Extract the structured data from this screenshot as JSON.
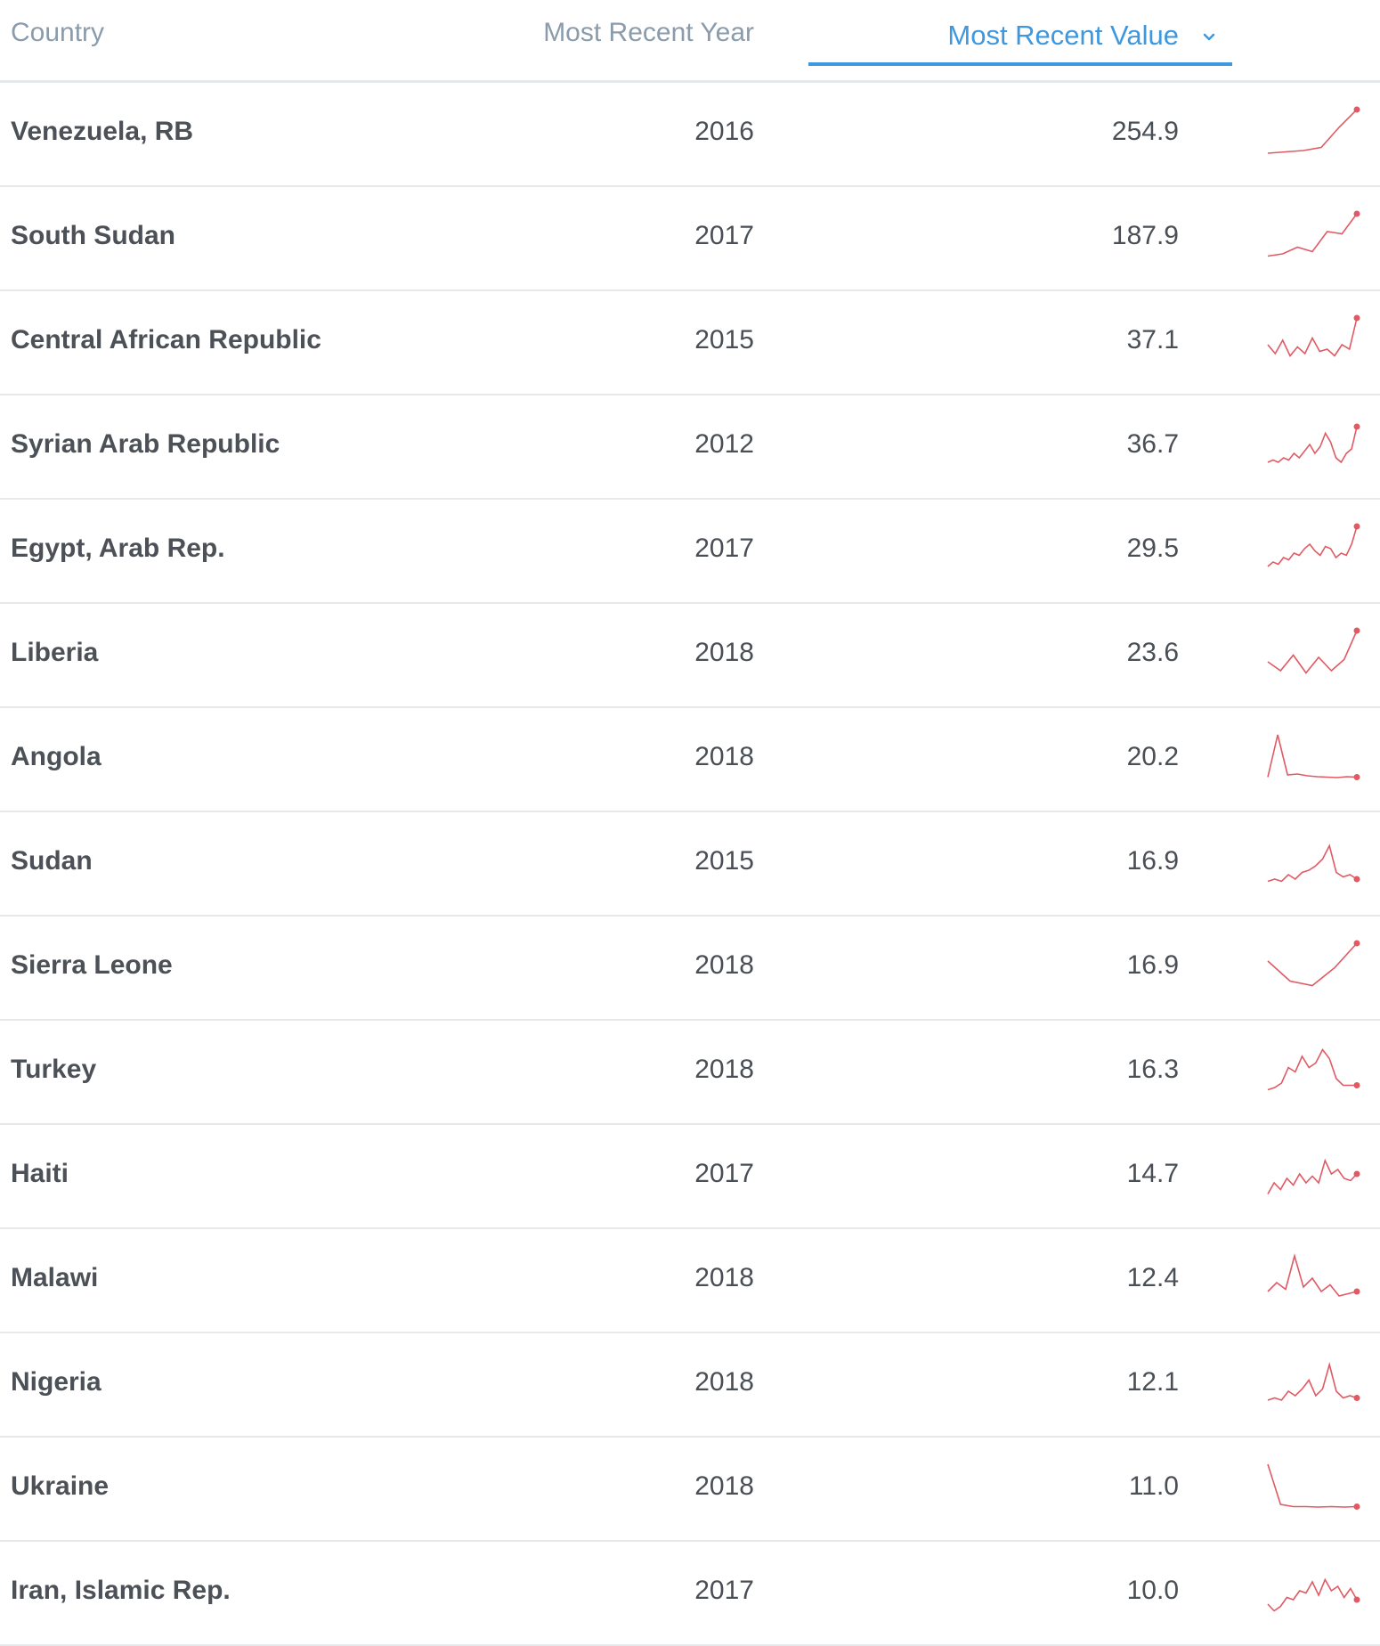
{
  "header": {
    "country": "Country",
    "year": "Most Recent Year",
    "value": "Most Recent Value",
    "sort_icon": "chevron-down-icon"
  },
  "colors": {
    "accent": "#3d98df",
    "spark": "#e05a64",
    "muted": "#8a9bab",
    "text": "#4a4f55"
  },
  "rows": [
    {
      "country": "Venezuela, RB",
      "year": "2016",
      "value": "254.9",
      "trend": [
        0.02,
        0.05,
        0.08,
        0.15,
        0.6,
        1.0
      ]
    },
    {
      "country": "South Sudan",
      "year": "2017",
      "value": "187.9",
      "trend": [
        0.05,
        0.1,
        0.25,
        0.15,
        0.6,
        0.55,
        1.0
      ]
    },
    {
      "country": "Central African Republic",
      "year": "2015",
      "value": "37.1",
      "trend": [
        0.4,
        0.2,
        0.5,
        0.15,
        0.35,
        0.2,
        0.55,
        0.25,
        0.3,
        0.15,
        0.4,
        0.3,
        1.0
      ]
    },
    {
      "country": "Syrian Arab Republic",
      "year": "2012",
      "value": "36.7",
      "trend": [
        0.1,
        0.15,
        0.1,
        0.2,
        0.15,
        0.3,
        0.2,
        0.35,
        0.5,
        0.3,
        0.45,
        0.75,
        0.55,
        0.2,
        0.1,
        0.3,
        0.4,
        0.9
      ]
    },
    {
      "country": "Egypt, Arab Rep.",
      "year": "2017",
      "value": "29.5",
      "trend": [
        0.1,
        0.2,
        0.15,
        0.3,
        0.25,
        0.4,
        0.35,
        0.5,
        0.6,
        0.45,
        0.35,
        0.55,
        0.5,
        0.3,
        0.4,
        0.35,
        0.6,
        1.0
      ]
    },
    {
      "country": "Liberia",
      "year": "2018",
      "value": "23.6",
      "trend": [
        0.3,
        0.1,
        0.45,
        0.05,
        0.4,
        0.1,
        0.35,
        1.0
      ]
    },
    {
      "country": "Angola",
      "year": "2018",
      "value": "20.2",
      "trend": [
        0.05,
        1.0,
        0.1,
        0.12,
        0.08,
        0.06,
        0.05,
        0.04,
        0.06,
        0.05
      ]
    },
    {
      "country": "Sudan",
      "year": "2015",
      "value": "16.9",
      "trend": [
        0.05,
        0.1,
        0.05,
        0.2,
        0.1,
        0.25,
        0.3,
        0.4,
        0.55,
        0.85,
        0.25,
        0.15,
        0.2,
        0.1
      ]
    },
    {
      "country": "Sierra Leone",
      "year": "2018",
      "value": "16.9",
      "trend": [
        0.6,
        0.15,
        0.05,
        0.45,
        1.0
      ]
    },
    {
      "country": "Turkey",
      "year": "2018",
      "value": "16.3",
      "trend": [
        0.05,
        0.1,
        0.2,
        0.55,
        0.45,
        0.8,
        0.55,
        0.65,
        0.95,
        0.75,
        0.3,
        0.15,
        0.15,
        0.15
      ]
    },
    {
      "country": "Haiti",
      "year": "2017",
      "value": "14.7",
      "trend": [
        0.05,
        0.3,
        0.15,
        0.4,
        0.25,
        0.5,
        0.3,
        0.45,
        0.3,
        0.8,
        0.5,
        0.6,
        0.4,
        0.35,
        0.5
      ]
    },
    {
      "country": "Malawi",
      "year": "2018",
      "value": "12.4",
      "trend": [
        0.2,
        0.4,
        0.25,
        1.0,
        0.3,
        0.5,
        0.2,
        0.35,
        0.1,
        0.15,
        0.2
      ]
    },
    {
      "country": "Nigeria",
      "year": "2018",
      "value": "12.1",
      "trend": [
        0.1,
        0.15,
        0.1,
        0.3,
        0.2,
        0.35,
        0.55,
        0.2,
        0.35,
        0.9,
        0.3,
        0.15,
        0.2,
        0.15
      ]
    },
    {
      "country": "Ukraine",
      "year": "2018",
      "value": "11.0",
      "trend": [
        1.0,
        0.1,
        0.05,
        0.05,
        0.04,
        0.05,
        0.04,
        0.05
      ]
    },
    {
      "country": "Iran, Islamic Rep.",
      "year": "2017",
      "value": "10.0",
      "trend": [
        0.2,
        0.05,
        0.15,
        0.35,
        0.3,
        0.5,
        0.45,
        0.7,
        0.4,
        0.75,
        0.5,
        0.6,
        0.35,
        0.55,
        0.3
      ]
    }
  ]
}
